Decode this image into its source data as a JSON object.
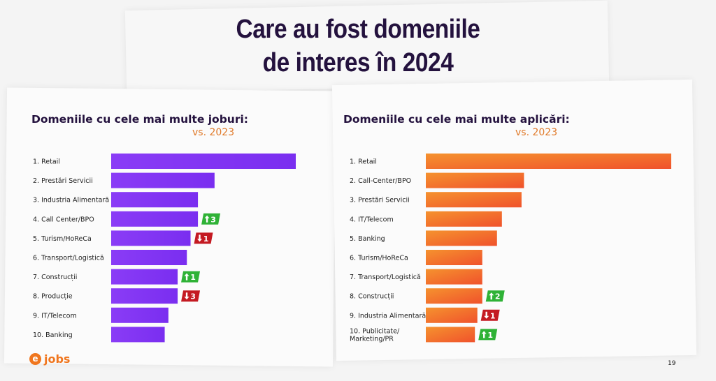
{
  "slide": {
    "title_line1": "Care au fost domeniile",
    "title_line2": "de interes în 2024",
    "page_number": "19",
    "logo_text": "jobs",
    "logo_mark": "e"
  },
  "colors": {
    "jobs_bar": "#8a37f5",
    "applications_bar": "#f57a30",
    "badge_up": "#2fb236",
    "badge_down": "#c41a22",
    "title": "#24123e",
    "subtitle": "#e07a2a"
  },
  "chart_data": [
    {
      "type": "bar",
      "orientation": "horizontal",
      "title": "Domeniile cu cele mai multe joburi:",
      "subtitle": "vs. 2023",
      "categories": [
        "1. Retail",
        "2. Prestări Servicii",
        "3. Industria Alimentară",
        "4. Call Center/BPO",
        "5. Turism/HoReCa",
        "6. Transport/Logistică",
        "7. Construcții",
        "8. Producție",
        "9. IT/Telecom",
        "10. Banking"
      ],
      "values": [
        100,
        56,
        47,
        47,
        43,
        41,
        36,
        36,
        31,
        29
      ],
      "value_scale": "relative bar length, Retail = 100 (no axis printed)",
      "changes": [
        null,
        null,
        null,
        "+3",
        "-1",
        null,
        "+1",
        "-3",
        null,
        null
      ],
      "change_labels": [
        "",
        "",
        "",
        "3",
        "1",
        "",
        "1",
        "3",
        "",
        ""
      ]
    },
    {
      "type": "bar",
      "orientation": "horizontal",
      "title": "Domeniile cu cele mai multe aplicări:",
      "subtitle": "vs. 2023",
      "categories": [
        "1. Retail",
        "2. Call-Center/BPO",
        "3. Prestări Servicii",
        "4. IT/Telecom",
        "5. Banking",
        "6. Turism/HoReCa",
        "7. Transport/Logistică",
        "8. Construcții",
        "9. Industria Alimentară",
        "10. Publicitate/ Marketing/PR"
      ],
      "values": [
        100,
        40,
        39,
        31,
        29,
        23,
        23,
        23,
        21,
        20
      ],
      "value_scale": "relative bar length, Retail = 100 (no axis printed)",
      "changes": [
        null,
        null,
        null,
        null,
        null,
        null,
        null,
        "+2",
        "-1",
        "+1"
      ],
      "change_labels": [
        "",
        "",
        "",
        "",
        "",
        "",
        "",
        "2",
        "1",
        "1"
      ]
    }
  ]
}
